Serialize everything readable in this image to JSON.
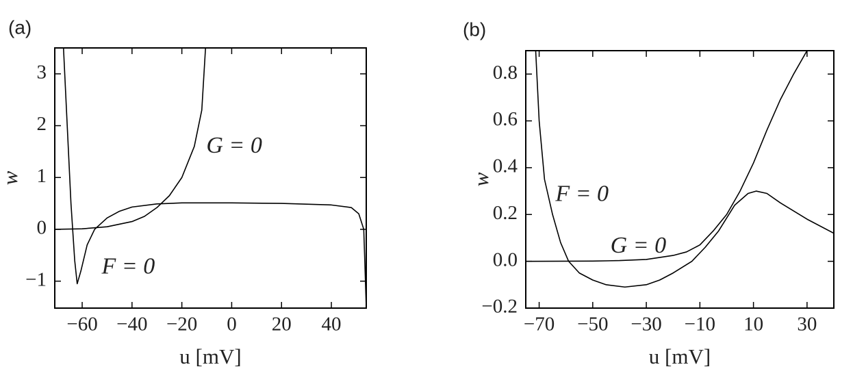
{
  "chart_data": [
    {
      "type": "line",
      "label": "(a)",
      "x_label": "u [mV]",
      "y_label": "w",
      "xlim": [
        -71,
        54
      ],
      "ylim": [
        -1.52,
        3.5
      ],
      "xticks": [
        {
          "value": -60,
          "label": "−60"
        },
        {
          "value": -40,
          "label": "−40"
        },
        {
          "value": -20,
          "label": "−20"
        },
        0,
        20,
        40
      ],
      "yticks": [
        {
          "value": -1,
          "label": "−1"
        },
        0,
        1,
        2,
        3
      ],
      "grid": false,
      "series": [
        {
          "color": "#000000",
          "x": [
            -67.5,
            -66,
            -64.5,
            -63,
            -62,
            -60.5,
            -58,
            -55,
            -50,
            -45,
            -40,
            -30,
            -20,
            0,
            20,
            40,
            48,
            51,
            53,
            54
          ],
          "values": [
            3.5,
            2.0,
            0.5,
            -0.6,
            -1.05,
            -0.8,
            -0.3,
            0.0,
            0.22,
            0.35,
            0.43,
            0.49,
            0.51,
            0.51,
            0.5,
            0.47,
            0.42,
            0.3,
            0.0,
            -1.5
          ]
        },
        {
          "color": "#000000",
          "x": [
            -71,
            -60,
            -50,
            -40,
            -35,
            -30,
            -25,
            -20,
            -15,
            -12,
            -10.5
          ],
          "values": [
            0.0,
            0.01,
            0.05,
            0.15,
            0.25,
            0.42,
            0.65,
            1.0,
            1.6,
            2.3,
            3.5
          ]
        }
      ],
      "annotations": [
        {
          "text": "G = 0",
          "x": 1,
          "y": 1.58
        },
        {
          "text": "F = 0",
          "x": -41.5,
          "y": -0.75
        }
      ]
    },
    {
      "type": "line",
      "label": "(b)",
      "x_label": "u [mV]",
      "y_label": "w",
      "xlim": [
        -75,
        40
      ],
      "ylim": [
        -0.2,
        0.9
      ],
      "xticks": [
        {
          "value": -70,
          "label": "−70"
        },
        {
          "value": -50,
          "label": "−50"
        },
        {
          "value": -30,
          "label": "−30"
        },
        {
          "value": -10,
          "label": "−10"
        },
        10,
        30
      ],
      "yticks": [
        {
          "value": -0.2,
          "label": "−0.2"
        },
        {
          "value": 0,
          "label": "0.0"
        },
        0.2,
        0.4,
        0.6,
        0.8
      ],
      "grid": false,
      "series": [
        {
          "color": "#000000",
          "x": [
            -71.3,
            -70,
            -68,
            -65,
            -62,
            -59,
            -55,
            -50,
            -45,
            -38,
            -30,
            -25,
            -20,
            -13,
            -8,
            -3,
            3,
            8,
            11,
            15,
            20,
            30,
            40
          ],
          "values": [
            0.9,
            0.6,
            0.35,
            0.2,
            0.08,
            0.0,
            -0.05,
            -0.08,
            -0.1,
            -0.11,
            -0.1,
            -0.08,
            -0.05,
            0.0,
            0.06,
            0.13,
            0.24,
            0.29,
            0.3,
            0.29,
            0.25,
            0.18,
            0.12
          ]
        },
        {
          "color": "#000000",
          "x": [
            -75,
            -50,
            -40,
            -30,
            -20,
            -15,
            -10,
            -5,
            0,
            5,
            10,
            15,
            20,
            25,
            30
          ],
          "values": [
            0.0,
            0.001,
            0.003,
            0.008,
            0.025,
            0.04,
            0.07,
            0.13,
            0.2,
            0.3,
            0.42,
            0.56,
            0.69,
            0.8,
            0.9
          ]
        }
      ],
      "annotations": [
        {
          "text": "F = 0",
          "x": -54,
          "y": 0.28
        },
        {
          "text": "G = 0",
          "x": -33,
          "y": 0.06
        }
      ]
    }
  ]
}
